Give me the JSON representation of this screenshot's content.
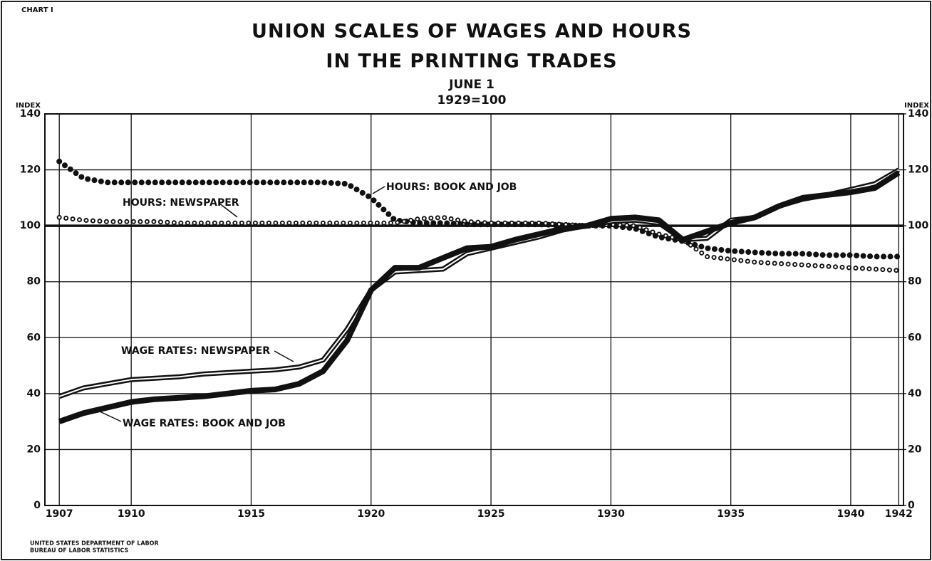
{
  "chart_data": {
    "type": "line",
    "chart_label": "CHART I",
    "title": [
      "UNION SCALES OF WAGES AND HOURS",
      "IN THE PRINTING TRADES"
    ],
    "subtitle": [
      "JUNE 1",
      "1929=100"
    ],
    "ylabel": "INDEX",
    "y2label": "INDEX",
    "source": [
      "UNITED STATES DEPARTMENT OF LABOR",
      "BUREAU OF LABOR STATISTICS"
    ],
    "x": [
      1907,
      1908,
      1909,
      1910,
      1911,
      1912,
      1913,
      1914,
      1915,
      1916,
      1917,
      1918,
      1919,
      1920,
      1921,
      1922,
      1923,
      1924,
      1925,
      1926,
      1927,
      1928,
      1929,
      1930,
      1931,
      1932,
      1933,
      1934,
      1935,
      1936,
      1937,
      1938,
      1939,
      1940,
      1941,
      1942
    ],
    "xlim": [
      1906.4,
      1942.2
    ],
    "xticks": [
      1907,
      1910,
      1915,
      1920,
      1925,
      1930,
      1935,
      1940,
      1942
    ],
    "ylim": [
      0,
      140
    ],
    "yticks": [
      0,
      20,
      40,
      60,
      80,
      100,
      120,
      140
    ],
    "y2lim": [
      0,
      140
    ],
    "y2ticks": [
      0,
      20,
      40,
      60,
      80,
      100,
      120,
      140
    ],
    "grid": true,
    "series": [
      {
        "name": "HOURS: BOOK AND JOB",
        "color": "#111111",
        "line_style": "filled-dots",
        "values": [
          123,
          117,
          115.5,
          115.5,
          115.5,
          115.5,
          115.5,
          115.5,
          115.5,
          115.5,
          115.5,
          115.5,
          115,
          110,
          102,
          101,
          101,
          100.5,
          100.5,
          100.5,
          100.5,
          100.2,
          100,
          100,
          99,
          96,
          94.5,
          92,
          91,
          90.5,
          90,
          90,
          89.5,
          89.5,
          89,
          89
        ]
      },
      {
        "name": "HOURS: NEWSPAPER",
        "color": "#111111",
        "line_style": "open-dots",
        "values": [
          103,
          102,
          101.5,
          101.5,
          101.5,
          101,
          101,
          101,
          101,
          101,
          101,
          101,
          101,
          101,
          101,
          102.5,
          103,
          101.5,
          101,
          101,
          101,
          100.5,
          100,
          100.5,
          100,
          97,
          95,
          89,
          88,
          87,
          86.5,
          86,
          85.5,
          85,
          84.5,
          84
        ]
      },
      {
        "name": "WAGE RATES: NEWSPAPER",
        "color": "#111111",
        "line_style": "double",
        "values": [
          39,
          42,
          43.5,
          45,
          45.5,
          46,
          47,
          47.5,
          48,
          48.5,
          49.5,
          52,
          63,
          77,
          83.5,
          84,
          84.5,
          90,
          92,
          94,
          96,
          98.5,
          100,
          101.5,
          102,
          101,
          95,
          95.5,
          102,
          103,
          107,
          109.5,
          111,
          113,
          115,
          120
        ]
      },
      {
        "name": "WAGE RATES: BOOK AND JOB",
        "color": "#111111",
        "line_style": "solid",
        "values": [
          30,
          33,
          35,
          37,
          38,
          38.5,
          39,
          40,
          41,
          41.5,
          43.5,
          48,
          59,
          77,
          85,
          85,
          88.5,
          92,
          92.5,
          95,
          97,
          99,
          100,
          102.5,
          103,
          102,
          95,
          98,
          101,
          103,
          107,
          110,
          111,
          112,
          113.5,
          119
        ]
      }
    ]
  }
}
